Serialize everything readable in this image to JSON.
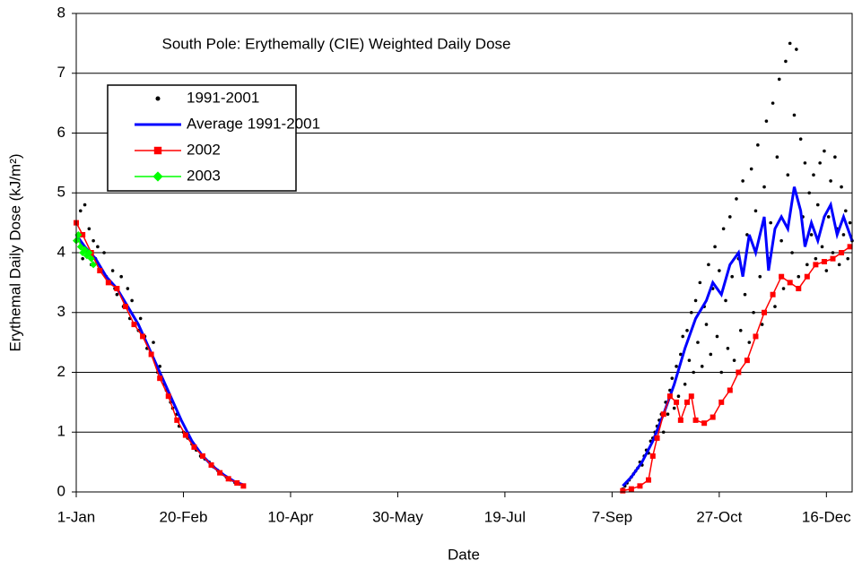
{
  "chart_data": {
    "type": "scatter",
    "title": "South Pole: Erythemally (CIE) Weighted Daily Dose",
    "x_label": "Date",
    "y_label": "Erythemal Daily Dose (kJ/m²)",
    "xlim": [
      1,
      363
    ],
    "ylim": [
      0,
      8
    ],
    "xticks": [
      {
        "value": 1,
        "label": "1-Jan"
      },
      {
        "value": 51,
        "label": "20-Feb"
      },
      {
        "value": 101,
        "label": "10-Apr"
      },
      {
        "value": 151,
        "label": "30-May"
      },
      {
        "value": 201,
        "label": "19-Jul"
      },
      {
        "value": 251,
        "label": "7-Sep"
      },
      {
        "value": 301,
        "label": "27-Oct"
      },
      {
        "value": 351,
        "label": "16-Dec"
      }
    ],
    "yticks": [
      0,
      1,
      2,
      3,
      4,
      5,
      6,
      7,
      8
    ],
    "grid": true,
    "legend": "upper left",
    "series": [
      {
        "name": "1991-2001",
        "color": "#000000",
        "marker": "dot",
        "line": false,
        "x": [
          1,
          2,
          3,
          4,
          5,
          6,
          7,
          8,
          9,
          10,
          11,
          12,
          14,
          15,
          16,
          18,
          19,
          20,
          22,
          23,
          25,
          26,
          27,
          28,
          30,
          31,
          33,
          34,
          36,
          37,
          39,
          40,
          42,
          43,
          45,
          46,
          48,
          49,
          51,
          53,
          55,
          57,
          59,
          61,
          63,
          65,
          67,
          69,
          71,
          73,
          75,
          77,
          79,
          256,
          257,
          258,
          259,
          260,
          261,
          262,
          263,
          264,
          265,
          266,
          267,
          268,
          269,
          270,
          271,
          272,
          273,
          274,
          275,
          276,
          277,
          278,
          279,
          280,
          281,
          282,
          283,
          284,
          285,
          286,
          287,
          288,
          289,
          290,
          291,
          292,
          293,
          294,
          295,
          296,
          297,
          298,
          299,
          300,
          301,
          302,
          303,
          304,
          305,
          306,
          307,
          308,
          309,
          310,
          311,
          312,
          313,
          314,
          315,
          316,
          317,
          318,
          319,
          320,
          321,
          322,
          323,
          324,
          325,
          326,
          327,
          328,
          329,
          330,
          331,
          332,
          333,
          334,
          335,
          336,
          337,
          338,
          339,
          340,
          341,
          342,
          343,
          344,
          345,
          346,
          347,
          348,
          349,
          350,
          351,
          352,
          353,
          354,
          355,
          356,
          357,
          358,
          359,
          360,
          361,
          362,
          363
        ],
        "values": [
          4.5,
          4.2,
          4.7,
          3.9,
          4.8,
          4.0,
          4.4,
          3.8,
          4.2,
          3.9,
          4.1,
          3.7,
          4.0,
          3.6,
          3.5,
          3.7,
          3.4,
          3.3,
          3.6,
          3.1,
          3.4,
          2.9,
          3.2,
          2.8,
          2.7,
          2.9,
          2.6,
          2.4,
          2.3,
          2.5,
          2.0,
          2.1,
          1.8,
          1.7,
          1.5,
          1.4,
          1.3,
          1.1,
          1.0,
          0.9,
          0.8,
          0.7,
          0.6,
          0.55,
          0.5,
          0.42,
          0.36,
          0.3,
          0.25,
          0.2,
          0.16,
          0.13,
          0.1,
          0.05,
          0.1,
          0.15,
          0.2,
          0.25,
          0.3,
          0.35,
          0.4,
          0.5,
          0.45,
          0.6,
          0.7,
          0.65,
          0.85,
          0.9,
          1.0,
          1.1,
          1.2,
          1.3,
          1.0,
          1.5,
          1.3,
          1.7,
          1.9,
          1.4,
          2.1,
          1.6,
          2.3,
          2.6,
          1.8,
          2.7,
          2.2,
          3.0,
          2.0,
          3.2,
          2.5,
          3.5,
          2.1,
          3.1,
          2.8,
          3.8,
          2.3,
          3.4,
          4.1,
          2.6,
          3.7,
          2.0,
          4.4,
          3.2,
          2.4,
          4.6,
          3.6,
          2.2,
          4.9,
          3.9,
          2.7,
          5.2,
          3.3,
          4.3,
          2.5,
          5.4,
          3.0,
          4.7,
          5.8,
          3.6,
          2.8,
          5.1,
          6.2,
          3.9,
          4.5,
          6.5,
          3.1,
          5.6,
          6.9,
          4.2,
          3.4,
          7.2,
          5.3,
          7.5,
          4.0,
          6.3,
          7.4,
          3.6,
          5.9,
          4.6,
          5.5,
          3.8,
          5.0,
          4.3,
          5.3,
          3.9,
          4.8,
          5.5,
          4.1,
          5.7,
          3.7,
          4.6,
          5.2,
          4.0,
          5.6,
          4.4,
          3.8,
          5.1,
          4.3,
          4.7,
          3.9,
          4.5,
          4.2
        ]
      },
      {
        "name": "Average 1991-2001",
        "color": "#0000ff",
        "marker": "none",
        "line": true,
        "x": [
          1,
          5,
          10,
          15,
          20,
          25,
          30,
          35,
          40,
          45,
          50,
          55,
          60,
          65,
          70,
          75,
          79,
          150,
          256,
          260,
          265,
          270,
          275,
          280,
          285,
          290,
          295,
          298,
          302,
          306,
          310,
          312,
          315,
          318,
          322,
          324,
          327,
          330,
          333,
          336,
          339,
          341,
          344,
          347,
          350,
          353,
          356,
          359,
          363
        ],
        "values": [
          4.3,
          4.1,
          3.9,
          3.6,
          3.4,
          3.1,
          2.8,
          2.4,
          2.0,
          1.6,
          1.2,
          0.85,
          0.6,
          0.42,
          0.28,
          0.17,
          0.12,
          null,
          0.1,
          0.25,
          0.5,
          0.85,
          1.3,
          1.8,
          2.4,
          2.9,
          3.2,
          3.5,
          3.3,
          3.8,
          4.0,
          3.6,
          4.3,
          4.0,
          4.6,
          3.7,
          4.4,
          4.6,
          4.4,
          5.1,
          4.7,
          4.1,
          4.5,
          4.2,
          4.6,
          4.8,
          4.3,
          4.6,
          4.2
        ]
      },
      {
        "name": "2002",
        "color": "#ff0000",
        "marker": "square",
        "line": true,
        "x": [
          1,
          4,
          8,
          12,
          16,
          20,
          24,
          28,
          32,
          36,
          40,
          44,
          48,
          52,
          56,
          60,
          64,
          68,
          72,
          76,
          79,
          150,
          256,
          260,
          264,
          268,
          270,
          272,
          275,
          278,
          281,
          283,
          286,
          288,
          290,
          294,
          298,
          302,
          306,
          310,
          314,
          318,
          322,
          326,
          330,
          334,
          338,
          342,
          346,
          350,
          354,
          358,
          362
        ],
        "values": [
          4.5,
          4.3,
          4.0,
          3.7,
          3.5,
          3.4,
          3.1,
          2.8,
          2.6,
          2.3,
          1.9,
          1.6,
          1.2,
          0.95,
          0.75,
          0.6,
          0.45,
          0.32,
          0.22,
          0.15,
          0.1,
          null,
          0.02,
          0.05,
          0.1,
          0.2,
          0.6,
          0.9,
          1.3,
          1.6,
          1.5,
          1.2,
          1.5,
          1.6,
          1.2,
          1.15,
          1.25,
          1.5,
          1.7,
          2.0,
          2.2,
          2.6,
          3.0,
          3.3,
          3.6,
          3.5,
          3.4,
          3.6,
          3.8,
          3.85,
          3.9,
          4.0,
          4.1
        ]
      },
      {
        "name": "2003",
        "color": "#00ff00",
        "marker": "diamond",
        "line": true,
        "x": [
          1,
          2,
          3,
          4,
          5,
          6,
          7,
          8,
          9
        ],
        "values": [
          4.2,
          4.3,
          4.1,
          4.0,
          4.05,
          3.95,
          4.0,
          3.9,
          3.8
        ]
      }
    ]
  }
}
